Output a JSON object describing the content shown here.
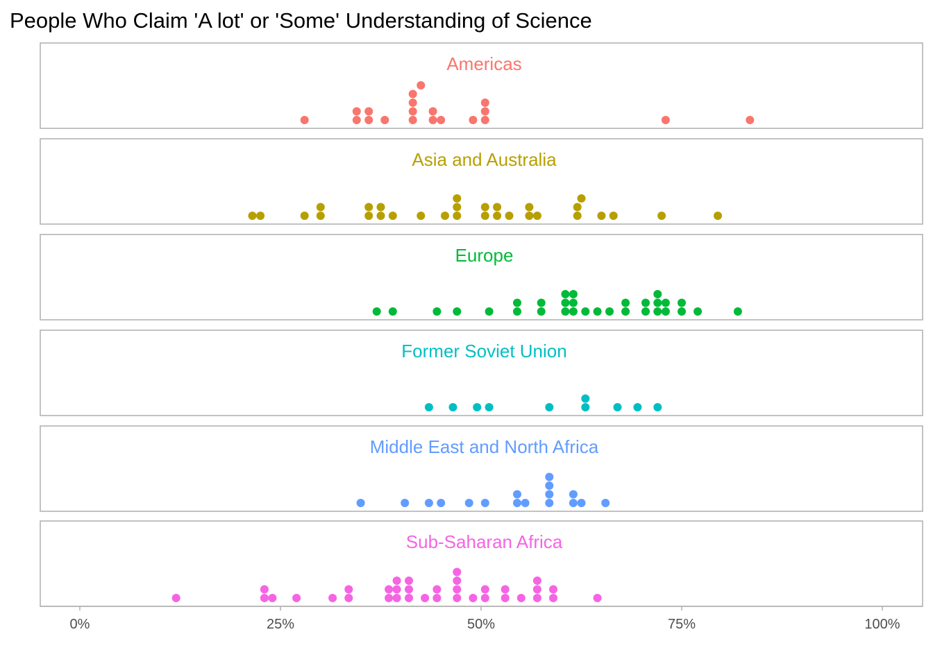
{
  "chart_data": {
    "type": "dot",
    "title": "People Who Claim 'A lot' or 'Some' Understanding of Science",
    "xlabel": "",
    "ylabel": "",
    "xlim": [
      0,
      100
    ],
    "x_ticks": [
      0,
      25,
      50,
      75,
      100
    ],
    "x_tick_labels": [
      "0%",
      "25%",
      "50%",
      "75%",
      "100%"
    ],
    "grid": false,
    "legend": "none",
    "facets": [
      {
        "name": "Americas",
        "color": "#F8766D",
        "values": [
          28,
          34.5,
          34.5,
          36,
          36,
          38,
          41.5,
          41.5,
          41.5,
          41.5,
          42.5,
          44,
          44,
          45,
          49,
          50.5,
          50.5,
          50.5,
          73,
          83.5
        ]
      },
      {
        "name": "Asia and Australia",
        "color": "#B79F00",
        "values": [
          21.5,
          22.5,
          28,
          30,
          30,
          36,
          36,
          37.5,
          37.5,
          39,
          42.5,
          45.5,
          47,
          47,
          47,
          50.5,
          50.5,
          52,
          52,
          53.5,
          56,
          56,
          57,
          62,
          62,
          62.5,
          65,
          66.5,
          72.5,
          79.5
        ]
      },
      {
        "name": "Europe",
        "color": "#00BA38",
        "values": [
          37,
          39,
          44.5,
          47,
          51,
          54.5,
          54.5,
          57.5,
          57.5,
          60.5,
          60.5,
          60.5,
          61.5,
          61.5,
          61.5,
          63,
          64.5,
          66,
          68,
          68,
          70.5,
          70.5,
          72,
          72,
          72,
          73,
          73,
          75,
          75,
          77,
          82
        ]
      },
      {
        "name": "Former Soviet Union",
        "color": "#00BFC4",
        "values": [
          43.5,
          46.5,
          49.5,
          51,
          58.5,
          63,
          63,
          67,
          69.5,
          72
        ]
      },
      {
        "name": "Middle East and North Africa",
        "color": "#619CFF",
        "values": [
          35,
          40.5,
          43.5,
          45,
          48.5,
          50.5,
          54.5,
          54.5,
          55.5,
          58.5,
          58.5,
          58.5,
          58.5,
          61.5,
          61.5,
          62.5,
          65.5
        ]
      },
      {
        "name": "Sub-Saharan Africa",
        "color": "#F564E3",
        "values": [
          12,
          23,
          23,
          24,
          27,
          31.5,
          33.5,
          33.5,
          38.5,
          38.5,
          39.5,
          39.5,
          39.5,
          41,
          41,
          41,
          43,
          44.5,
          44.5,
          47,
          47,
          47,
          47,
          49,
          50.5,
          50.5,
          53,
          53,
          55,
          57,
          57,
          57,
          59,
          59,
          64.5
        ]
      }
    ]
  }
}
